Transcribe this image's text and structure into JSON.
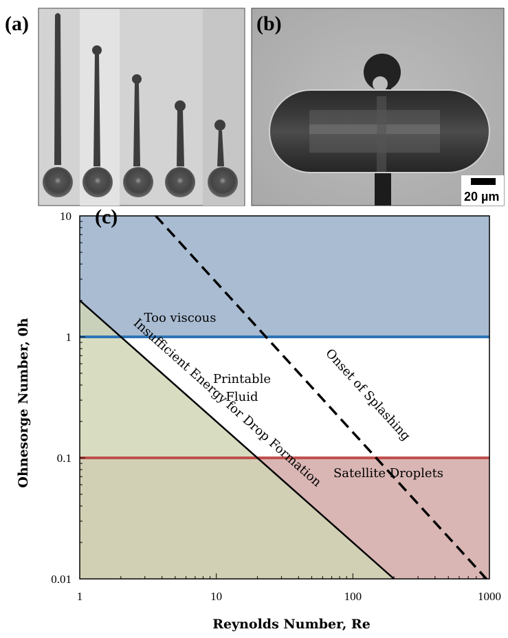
{
  "panels": {
    "a": {
      "label": "(a)",
      "droplets": 5
    },
    "b": {
      "label": "(b)",
      "scale_bar": "20 µm"
    },
    "c": {
      "label": "(c)"
    }
  },
  "chart_data": {
    "type": "area",
    "title": "",
    "xlabel": "Reynolds Number, Re",
    "ylabel": "Ohnesorge Number, 0h",
    "xscale": "log",
    "yscale": "log",
    "xlim": [
      1,
      1000
    ],
    "ylim": [
      0.01,
      10
    ],
    "xticks": [
      "1",
      "10",
      "100",
      "1000"
    ],
    "yticks": [
      "0.01",
      "0.1",
      "1",
      "10"
    ],
    "regions": [
      {
        "label": "Too viscous",
        "color": "#a9bcd2",
        "bounds": "Oh > 1"
      },
      {
        "label": "Printable Fluid",
        "color": "#ffffff",
        "bounds": "0.1 < Oh < 1, right of energy line"
      },
      {
        "label": "Satellite Droplets",
        "color": "#d9b6b4",
        "bounds": "Oh < 0.1"
      },
      {
        "label": "Insufficient Energy for Drop Formation",
        "color": "#cfd6b4",
        "bounds": "below line Oh = 2/Re"
      }
    ],
    "lines": [
      {
        "label": "",
        "color": "#2e75b6",
        "style": "solid",
        "points": [
          [
            1,
            1
          ],
          [
            1000,
            1
          ]
        ]
      },
      {
        "label": "",
        "color": "#c0504d",
        "style": "solid",
        "points": [
          [
            1,
            0.1
          ],
          [
            1000,
            0.1
          ]
        ]
      },
      {
        "label": "Insufficient Energy for Drop Formation",
        "color": "#000000",
        "style": "solid",
        "points": [
          [
            1,
            2
          ],
          [
            200,
            0.01
          ]
        ]
      },
      {
        "label": "Onset of Splashing",
        "color": "#000000",
        "style": "dashed",
        "points": [
          [
            3.6,
            10
          ],
          [
            950,
            0.01
          ]
        ]
      }
    ]
  }
}
